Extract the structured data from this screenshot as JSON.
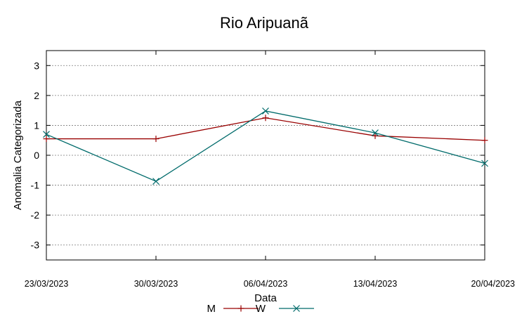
{
  "chart_data": {
    "type": "line",
    "title": "Rio Aripuanã",
    "xlabel": "Data",
    "ylabel": "Anomalia Categorizada",
    "x": [
      "23/03/2023",
      "30/03/2023",
      "06/04/2023",
      "13/04/2023",
      "20/04/2023"
    ],
    "ylim": [
      -3.5,
      3.5
    ],
    "yticks": [
      -3,
      -2,
      -1,
      0,
      1,
      2,
      3
    ],
    "grid": true,
    "legend_position": "bottom-center",
    "series": [
      {
        "name": "M",
        "color": "#990000",
        "marker": "plus",
        "values": [
          0.55,
          0.55,
          1.25,
          0.65,
          0.5
        ]
      },
      {
        "name": "W",
        "color": "#006b6b",
        "marker": "x",
        "values": [
          0.7,
          -0.87,
          1.48,
          0.75,
          -0.27
        ]
      }
    ]
  }
}
